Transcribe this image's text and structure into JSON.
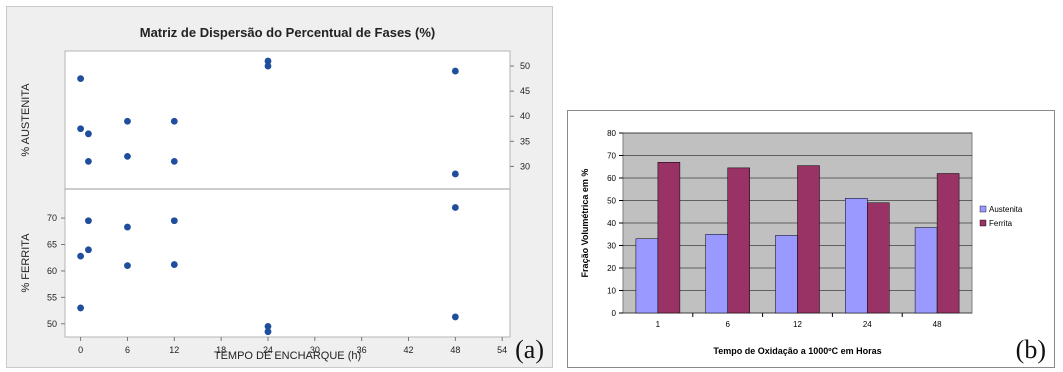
{
  "chart_data": [
    {
      "type": "scatter",
      "title": "Matriz de Dispersão do Percentual de Fases (%)",
      "xlabel": "TEMPO DE ENCHARQUE (h)",
      "x_ticks": [
        "0",
        "6",
        "12",
        "18",
        "24",
        "30",
        "36",
        "42",
        "48",
        "54"
      ],
      "xlim": [
        -2,
        55
      ],
      "panel_label": "(a)",
      "series": [
        {
          "name": "% AUSTENITA",
          "y_ticks": [
            "30",
            "35",
            "40",
            "45",
            "50"
          ],
          "ylim": [
            25.5,
            53
          ],
          "points": [
            {
              "x": 0,
              "y": 47.5
            },
            {
              "x": 0,
              "y": 37.5
            },
            {
              "x": 1,
              "y": 36.5
            },
            {
              "x": 1,
              "y": 31
            },
            {
              "x": 6,
              "y": 39
            },
            {
              "x": 6,
              "y": 32
            },
            {
              "x": 12,
              "y": 39
            },
            {
              "x": 12,
              "y": 31
            },
            {
              "x": 24,
              "y": 51
            },
            {
              "x": 24,
              "y": 50
            },
            {
              "x": 48,
              "y": 49
            },
            {
              "x": 48,
              "y": 28.5
            }
          ]
        },
        {
          "name": "% FERRITA",
          "y_ticks": [
            "50",
            "55",
            "60",
            "65",
            "70"
          ],
          "ylim": [
            47.5,
            75.5
          ],
          "points": [
            {
              "x": 0,
              "y": 53
            },
            {
              "x": 0,
              "y": 62.8
            },
            {
              "x": 1,
              "y": 64
            },
            {
              "x": 1,
              "y": 69.5
            },
            {
              "x": 6,
              "y": 68.3
            },
            {
              "x": 6,
              "y": 61
            },
            {
              "x": 12,
              "y": 69.5
            },
            {
              "x": 12,
              "y": 61.2
            },
            {
              "x": 24,
              "y": 49.5
            },
            {
              "x": 24,
              "y": 48.5
            },
            {
              "x": 48,
              "y": 72
            },
            {
              "x": 48,
              "y": 51.3
            }
          ]
        }
      ],
      "marker_color": "#1f4e9c"
    },
    {
      "type": "bar",
      "xlabel": "Tempo de Oxidação a 1000ºC em Horas",
      "ylabel": "Fração Volumétrica em %",
      "categories": [
        "1",
        "6",
        "12",
        "24",
        "48"
      ],
      "ylim": [
        0,
        80
      ],
      "y_ticks": [
        "0",
        "10",
        "20",
        "30",
        "40",
        "50",
        "60",
        "70",
        "80"
      ],
      "series": [
        {
          "name": "Austenita",
          "values": [
            33,
            35,
            34.5,
            51,
            38
          ],
          "color": "#9999ff"
        },
        {
          "name": "Ferrita",
          "values": [
            67,
            64.5,
            65.5,
            49,
            62
          ],
          "color": "#993366"
        }
      ],
      "grid": true,
      "legend": "right",
      "plot_background": "#c0c0c0",
      "panel_label": "(b)"
    }
  ]
}
